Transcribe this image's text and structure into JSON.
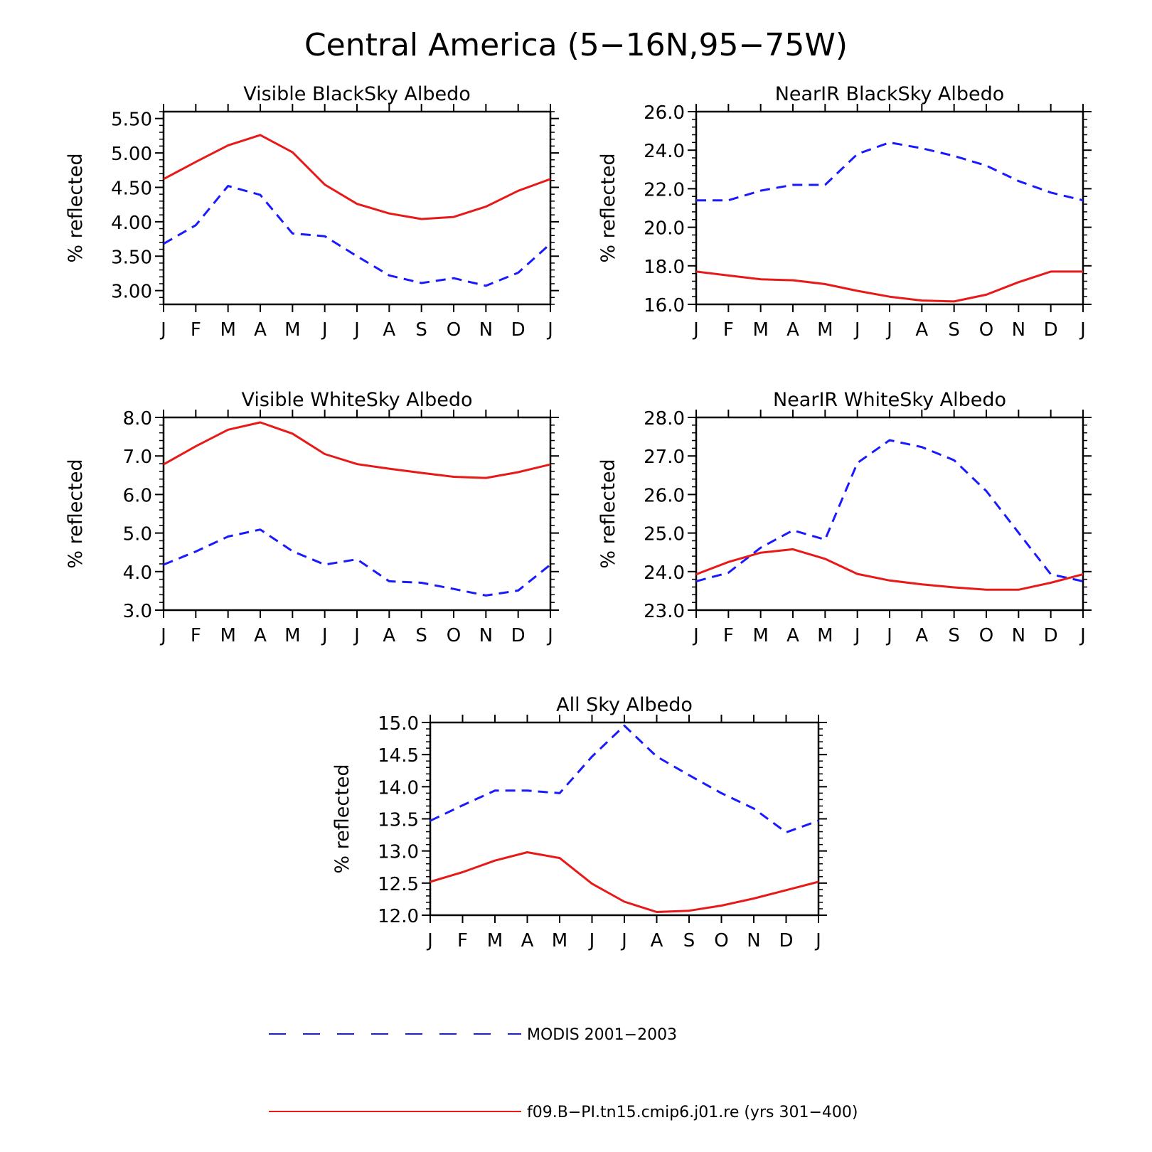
{
  "figure": {
    "title": "Central America (5−16N,95−75W)"
  },
  "colors": {
    "modis": "#1a1aff",
    "model": "#e81919"
  },
  "legend": {
    "modis_label": "MODIS 2001−2003",
    "model_label": "f09.B−PI.tn15.cmip6.j01.re (yrs 301−400)"
  },
  "chart_data": [
    {
      "type": "line",
      "title": "Visible BlackSky Albedo",
      "ylabel": "% reflected",
      "categories": [
        "J",
        "F",
        "M",
        "A",
        "M",
        "J",
        "J",
        "A",
        "S",
        "O",
        "N",
        "D",
        "J"
      ],
      "ylim": [
        2.8,
        5.6
      ],
      "yticks": [
        "3.00",
        "3.50",
        "4.00",
        "4.50",
        "5.00",
        "5.50"
      ],
      "series": [
        {
          "name": "MODIS 2001−2003",
          "style": "dashed",
          "values": [
            3.68,
            3.95,
            4.52,
            4.39,
            3.83,
            3.79,
            3.5,
            3.22,
            3.11,
            3.18,
            3.07,
            3.26,
            3.68
          ]
        },
        {
          "name": "f09.B−PI.tn15.cmip6.j01.re (yrs 301−400)",
          "style": "solid",
          "values": [
            4.62,
            4.87,
            5.11,
            5.26,
            5.01,
            4.54,
            4.26,
            4.12,
            4.04,
            4.07,
            4.22,
            4.45,
            4.62
          ]
        }
      ]
    },
    {
      "type": "line",
      "title": "NearIR BlackSky Albedo",
      "ylabel": "% reflected",
      "categories": [
        "J",
        "F",
        "M",
        "A",
        "M",
        "J",
        "J",
        "A",
        "S",
        "O",
        "N",
        "D",
        "J"
      ],
      "ylim": [
        16.0,
        26.0
      ],
      "yticks": [
        "16.0",
        "18.0",
        "20.0",
        "22.0",
        "24.0",
        "26.0"
      ],
      "series": [
        {
          "name": "MODIS 2001−2003",
          "style": "dashed",
          "values": [
            21.4,
            21.4,
            21.9,
            22.2,
            22.2,
            23.8,
            24.4,
            24.1,
            23.7,
            23.2,
            22.4,
            21.8,
            21.4
          ]
        },
        {
          "name": "f09.B−PI.tn15.cmip6.j01.re (yrs 301−400)",
          "style": "solid",
          "values": [
            17.7,
            17.5,
            17.3,
            17.25,
            17.05,
            16.7,
            16.4,
            16.2,
            16.15,
            16.5,
            17.15,
            17.7,
            17.7
          ]
        }
      ]
    },
    {
      "type": "line",
      "title": "Visible WhiteSky Albedo",
      "ylabel": "% reflected",
      "categories": [
        "J",
        "F",
        "M",
        "A",
        "M",
        "J",
        "J",
        "A",
        "S",
        "O",
        "N",
        "D",
        "J"
      ],
      "ylim": [
        3.0,
        8.0
      ],
      "yticks": [
        "3.0",
        "4.0",
        "5.0",
        "6.0",
        "7.0",
        "8.0"
      ],
      "series": [
        {
          "name": "MODIS 2001−2003",
          "style": "dashed",
          "values": [
            4.18,
            4.52,
            4.91,
            5.09,
            4.53,
            4.18,
            4.32,
            3.75,
            3.71,
            3.55,
            3.38,
            3.51,
            4.18
          ]
        },
        {
          "name": "f09.B−PI.tn15.cmip6.j01.re (yrs 301−400)",
          "style": "solid",
          "values": [
            6.78,
            7.25,
            7.68,
            7.87,
            7.58,
            7.05,
            6.79,
            6.67,
            6.56,
            6.46,
            6.43,
            6.58,
            6.78
          ]
        }
      ]
    },
    {
      "type": "line",
      "title": "NearIR WhiteSky Albedo",
      "ylabel": "% reflected",
      "categories": [
        "J",
        "F",
        "M",
        "A",
        "M",
        "J",
        "J",
        "A",
        "S",
        "O",
        "N",
        "D",
        "J"
      ],
      "ylim": [
        23.0,
        28.0
      ],
      "yticks": [
        "23.0",
        "24.0",
        "25.0",
        "26.0",
        "27.0",
        "28.0"
      ],
      "series": [
        {
          "name": "MODIS 2001−2003",
          "style": "dashed",
          "values": [
            23.75,
            23.97,
            24.62,
            25.07,
            24.83,
            26.82,
            27.41,
            27.23,
            26.89,
            26.09,
            25.01,
            23.93,
            23.75
          ]
        },
        {
          "name": "f09.B−PI.tn15.cmip6.j01.re (yrs 301−400)",
          "style": "solid",
          "values": [
            23.93,
            24.25,
            24.49,
            24.58,
            24.33,
            23.94,
            23.77,
            23.67,
            23.59,
            23.53,
            23.53,
            23.71,
            23.93
          ]
        }
      ]
    },
    {
      "type": "line",
      "title": "All Sky Albedo",
      "ylabel": "% reflected",
      "categories": [
        "J",
        "F",
        "M",
        "A",
        "M",
        "J",
        "J",
        "A",
        "S",
        "O",
        "N",
        "D",
        "J"
      ],
      "ylim": [
        12.0,
        15.0
      ],
      "yticks": [
        "12.0",
        "12.5",
        "13.0",
        "13.5",
        "14.0",
        "14.5",
        "15.0"
      ],
      "series": [
        {
          "name": "MODIS 2001−2003",
          "style": "dashed",
          "values": [
            13.47,
            13.71,
            13.94,
            13.94,
            13.9,
            14.47,
            14.95,
            14.47,
            14.18,
            13.9,
            13.66,
            13.29,
            13.47
          ]
        },
        {
          "name": "f09.B−PI.tn15.cmip6.j01.re (yrs 301−400)",
          "style": "solid",
          "values": [
            12.52,
            12.67,
            12.85,
            12.98,
            12.89,
            12.49,
            12.21,
            12.05,
            12.07,
            12.15,
            12.26,
            12.39,
            12.52
          ]
        }
      ]
    }
  ]
}
